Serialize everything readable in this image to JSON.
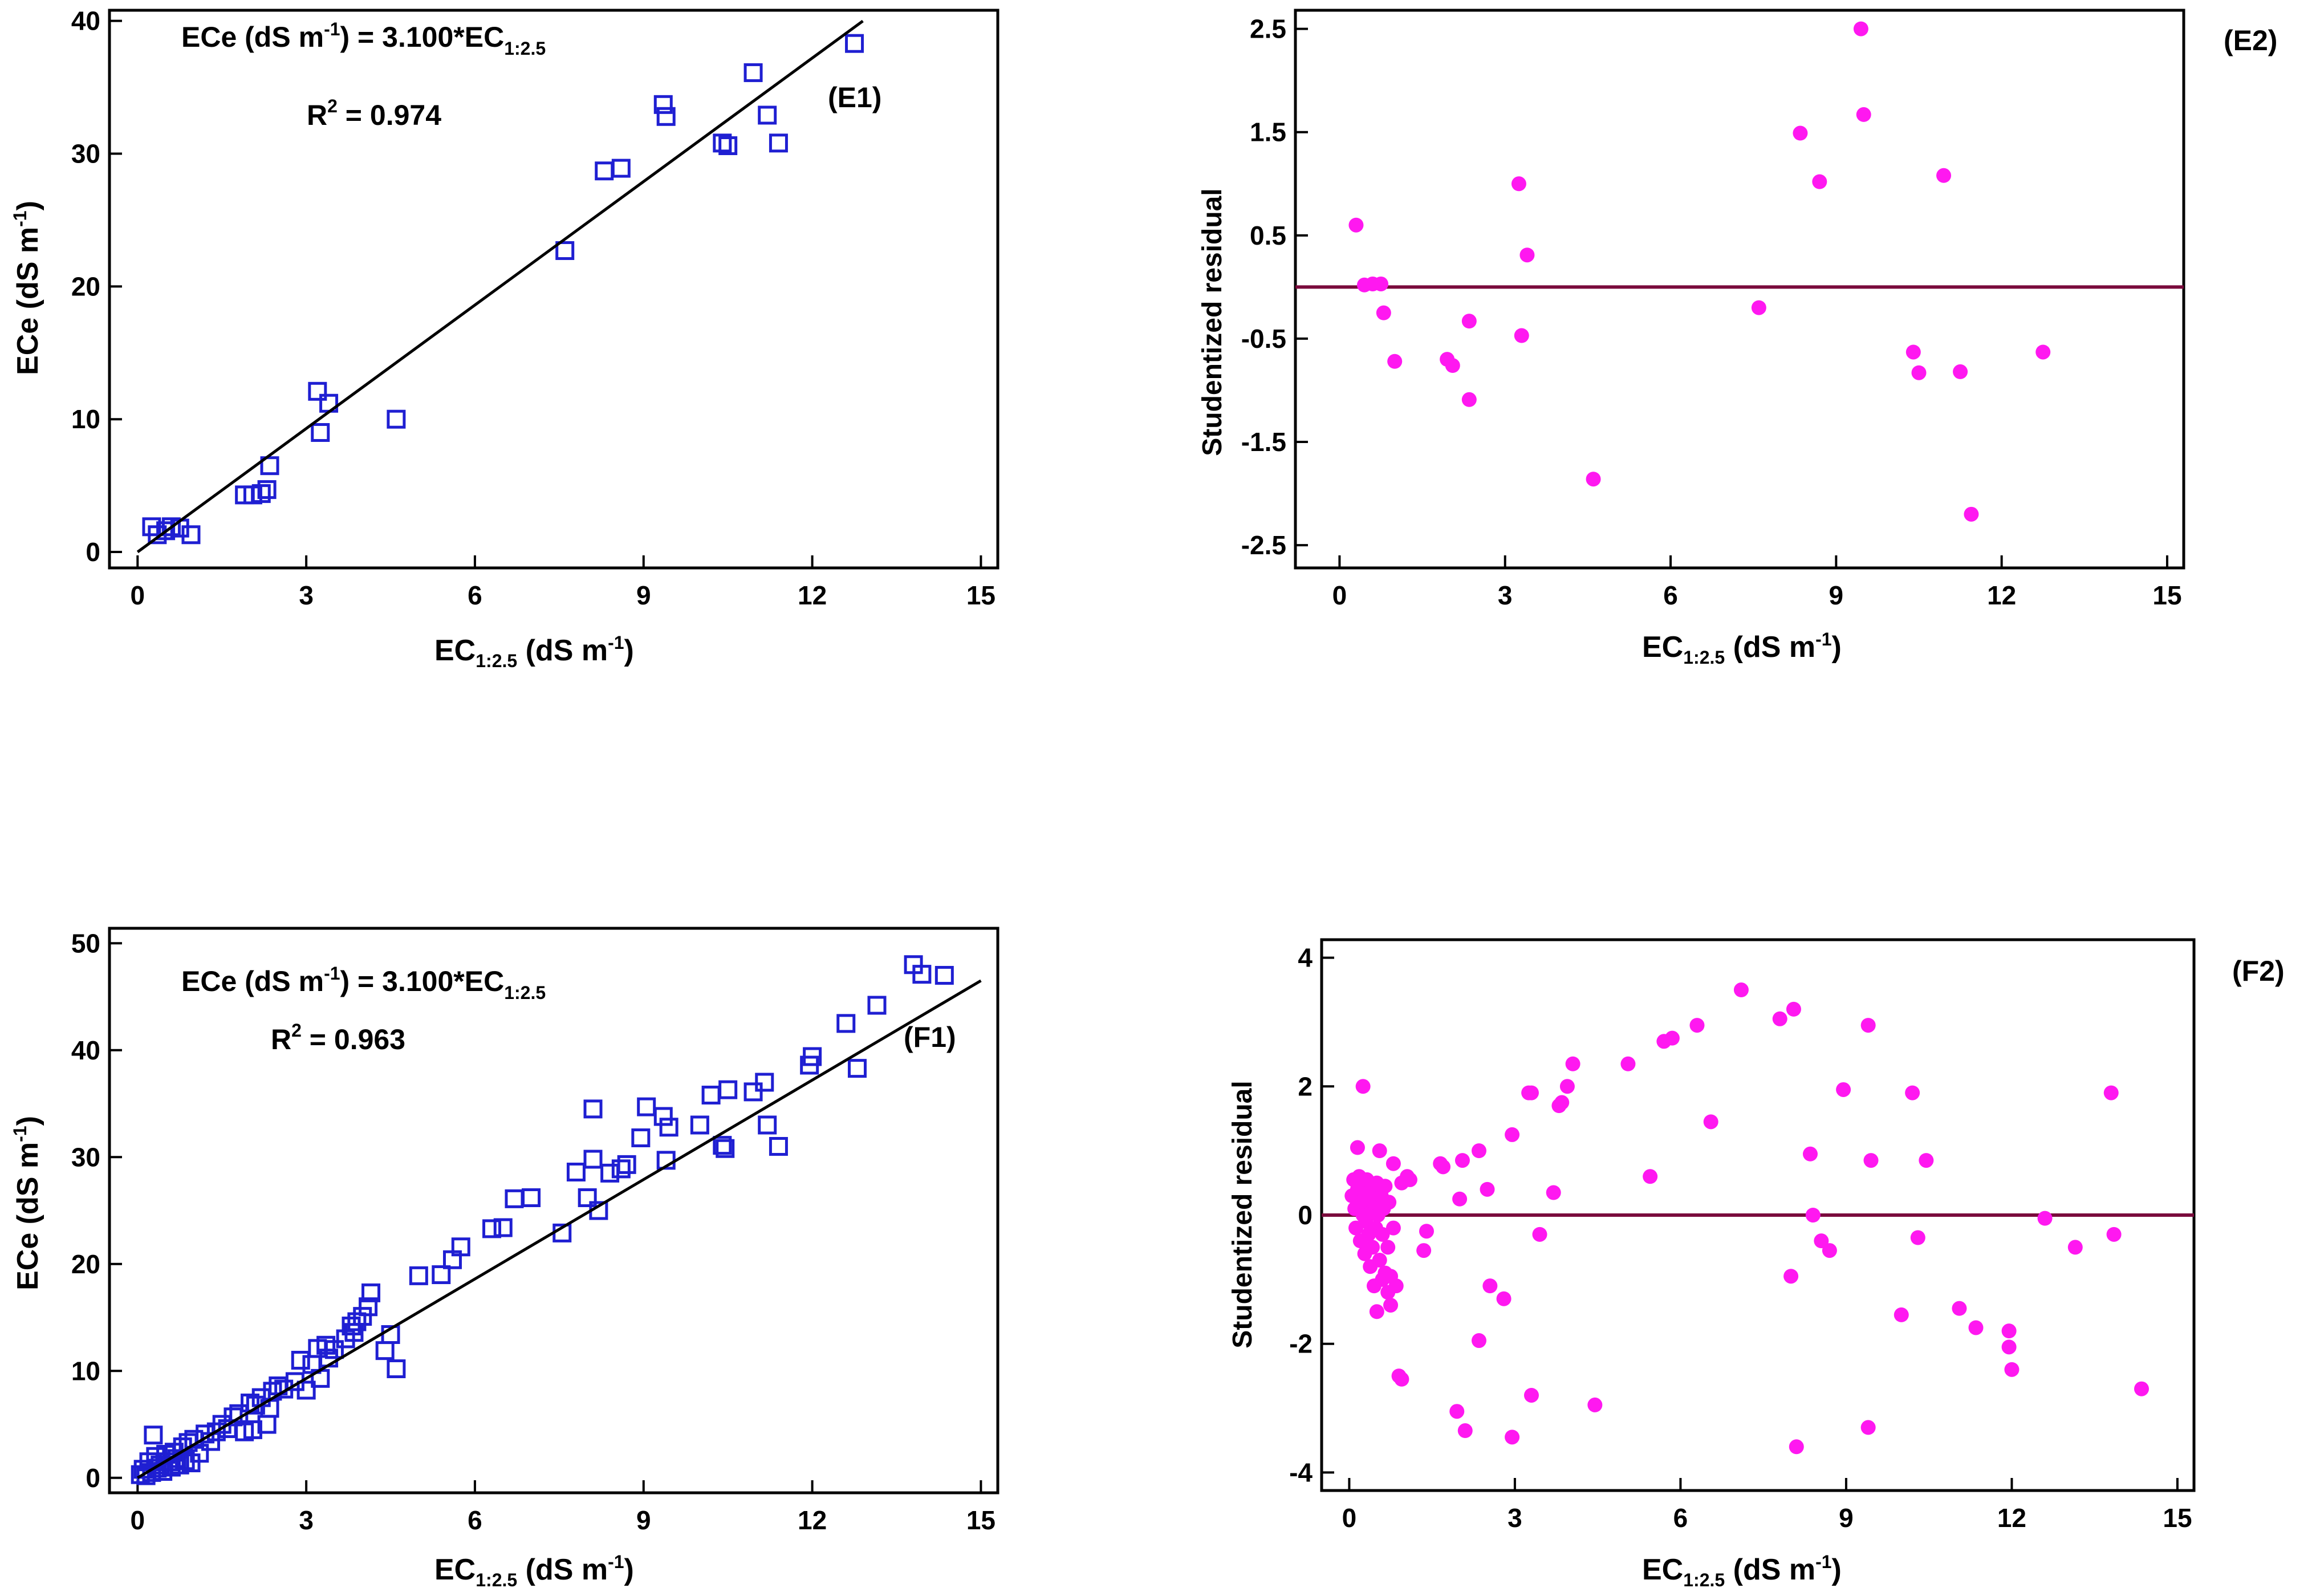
{
  "chart_data": [
    {
      "id": "E1",
      "type": "scatter",
      "panel_label": "(E1)",
      "equation_prefix": "ECe (dS m",
      "equation_sup": "-1",
      "equation_mid": ") = 3.100*EC",
      "equation_sub": "1:2.5",
      "r2_prefix": "R",
      "r2_sup": "2",
      "r2_suffix": " = 0.974",
      "xlabel_main": "EC",
      "xlabel_sub": "1:2.5",
      "xlabel_unit": " (dS m",
      "xlabel_sup": "-1",
      "xlabel_close": ")",
      "ylabel_main": "ECe (dS m",
      "ylabel_sup": "-1",
      "ylabel_close": ")",
      "xlim": [
        -0.5,
        15.3
      ],
      "ylim": [
        -1.2,
        40.8
      ],
      "xticks": [
        0,
        3,
        6,
        9,
        12,
        15
      ],
      "yticks": [
        0,
        10,
        20,
        30,
        40
      ],
      "xtick_labels": [
        "0",
        "3",
        "6",
        "9",
        "12",
        "15"
      ],
      "ytick_labels": [
        "0",
        "10",
        "20",
        "30",
        "40"
      ],
      "line": {
        "slope": 3.1,
        "x": [
          0,
          12.9
        ]
      },
      "marker": "square",
      "color": "#1f1fd2",
      "points": [
        [
          0.25,
          1.9
        ],
        [
          0.35,
          1.3
        ],
        [
          0.5,
          1.6
        ],
        [
          0.6,
          1.9
        ],
        [
          0.75,
          1.8
        ],
        [
          0.95,
          1.3
        ],
        [
          1.9,
          4.3
        ],
        [
          2.05,
          4.3
        ],
        [
          2.2,
          4.4
        ],
        [
          2.3,
          4.7
        ],
        [
          2.35,
          6.5
        ],
        [
          3.2,
          12.1
        ],
        [
          3.25,
          9.0
        ],
        [
          3.4,
          11.2
        ],
        [
          4.6,
          10.0
        ],
        [
          7.6,
          22.7
        ],
        [
          8.3,
          28.7
        ],
        [
          8.6,
          28.9
        ],
        [
          9.35,
          33.7
        ],
        [
          9.4,
          32.8
        ],
        [
          10.4,
          30.8
        ],
        [
          10.5,
          30.6
        ],
        [
          10.95,
          36.1
        ],
        [
          11.2,
          32.9
        ],
        [
          11.4,
          30.8
        ],
        [
          12.75,
          38.3
        ]
      ]
    },
    {
      "id": "E2",
      "type": "scatter",
      "panel_label": "(E2)",
      "xlabel_main": "EC",
      "xlabel_sub": "1:2.5",
      "xlabel_unit": " (dS m",
      "xlabel_sup": "-1",
      "xlabel_close": ")",
      "ylabel": "Studentized residual",
      "xlim": [
        -0.8,
        15.3
      ],
      "ylim": [
        -2.72,
        2.68
      ],
      "xticks": [
        0,
        3,
        6,
        9,
        12,
        15
      ],
      "yticks": [
        -2.5,
        -1.5,
        -0.5,
        0.5,
        1.5,
        2.5
      ],
      "xtick_labels": [
        "0",
        "3",
        "6",
        "9",
        "12",
        "15"
      ],
      "ytick_labels": [
        "-2.5",
        "-1.5",
        "-0.5",
        "0.5",
        "1.5",
        "2.5"
      ],
      "zero_line": 0,
      "zero_line_color": "#7a0b3c",
      "marker": "circle",
      "color": "#ff18f0",
      "points": [
        [
          0.3,
          0.6
        ],
        [
          0.45,
          0.02
        ],
        [
          0.6,
          0.03
        ],
        [
          0.75,
          0.03
        ],
        [
          0.8,
          -0.25
        ],
        [
          1.0,
          -0.72
        ],
        [
          1.95,
          -0.7
        ],
        [
          2.05,
          -0.76
        ],
        [
          2.35,
          -1.09
        ],
        [
          2.35,
          -0.33
        ],
        [
          3.25,
          1.0
        ],
        [
          3.3,
          -0.47
        ],
        [
          3.4,
          0.31
        ],
        [
          4.6,
          -1.86
        ],
        [
          7.6,
          -0.2
        ],
        [
          8.35,
          1.49
        ],
        [
          8.7,
          1.02
        ],
        [
          9.45,
          2.5
        ],
        [
          9.5,
          1.67
        ],
        [
          10.4,
          -0.63
        ],
        [
          10.5,
          -0.83
        ],
        [
          10.95,
          1.08
        ],
        [
          11.25,
          -0.82
        ],
        [
          11.45,
          -2.2
        ],
        [
          12.75,
          -0.63
        ]
      ]
    },
    {
      "id": "F1",
      "type": "scatter",
      "panel_label": "(F1)",
      "equation_prefix": "ECe (dS m",
      "equation_sup": "-1",
      "equation_mid": ") = 3.100*EC",
      "equation_sub": "1:2.5",
      "r2_prefix": "R",
      "r2_sup": "2",
      "r2_suffix": " = 0.963",
      "xlabel_main": "EC",
      "xlabel_sub": "1:2.5",
      "xlabel_unit": " (dS m",
      "xlabel_sup": "-1",
      "xlabel_close": ")",
      "ylabel_main": "ECe (dS m",
      "ylabel_sup": "-1",
      "ylabel_close": ")",
      "xlim": [
        -0.5,
        15.3
      ],
      "ylim": [
        -1.4,
        51.4
      ],
      "xticks": [
        0,
        3,
        6,
        9,
        12,
        15
      ],
      "yticks": [
        0,
        10,
        20,
        30,
        40,
        50
      ],
      "xtick_labels": [
        "0",
        "3",
        "6",
        "9",
        "12",
        "15"
      ],
      "ytick_labels": [
        "0",
        "10",
        "20",
        "30",
        "40",
        "50"
      ],
      "line": {
        "slope": 3.1,
        "x": [
          0,
          15
        ]
      },
      "marker": "square",
      "color": "#1f1fd2",
      "points": [
        [
          0.05,
          0.3
        ],
        [
          0.1,
          0.8
        ],
        [
          0.15,
          0.2
        ],
        [
          0.2,
          1.5
        ],
        [
          0.25,
          0.5
        ],
        [
          0.28,
          4.0
        ],
        [
          0.32,
          2.0
        ],
        [
          0.35,
          0.9
        ],
        [
          0.4,
          1.2
        ],
        [
          0.45,
          0.6
        ],
        [
          0.5,
          2.2
        ],
        [
          0.55,
          1.5
        ],
        [
          0.6,
          1.0
        ],
        [
          0.65,
          2.4
        ],
        [
          0.7,
          1.8
        ],
        [
          0.75,
          1.2
        ],
        [
          0.8,
          2.9
        ],
        [
          0.85,
          1.6
        ],
        [
          0.9,
          3.3
        ],
        [
          0.95,
          1.4
        ],
        [
          1.0,
          3.6
        ],
        [
          1.1,
          2.3
        ],
        [
          1.2,
          4.1
        ],
        [
          1.3,
          3.4
        ],
        [
          1.4,
          4.3
        ],
        [
          1.5,
          5.0
        ],
        [
          1.6,
          4.6
        ],
        [
          1.7,
          5.7
        ],
        [
          1.8,
          6.0
        ],
        [
          1.9,
          4.3
        ],
        [
          2.0,
          7.0
        ],
        [
          2.05,
          4.5
        ],
        [
          2.1,
          6.8
        ],
        [
          2.2,
          7.5
        ],
        [
          2.3,
          5.0
        ],
        [
          2.35,
          6.5
        ],
        [
          2.4,
          8.1
        ],
        [
          2.5,
          8.6
        ],
        [
          2.6,
          8.3
        ],
        [
          2.8,
          9.0
        ],
        [
          2.9,
          11.0
        ],
        [
          3.0,
          8.2
        ],
        [
          3.1,
          10.6
        ],
        [
          3.2,
          12.1
        ],
        [
          3.25,
          9.3
        ],
        [
          3.35,
          12.4
        ],
        [
          3.4,
          11.2
        ],
        [
          3.5,
          12.0
        ],
        [
          3.7,
          13.0
        ],
        [
          3.8,
          14.2
        ],
        [
          3.85,
          13.6
        ],
        [
          3.9,
          14.6
        ],
        [
          4.0,
          15.1
        ],
        [
          4.1,
          16.0
        ],
        [
          4.15,
          17.3
        ],
        [
          4.4,
          11.9
        ],
        [
          4.5,
          13.4
        ],
        [
          4.6,
          10.2
        ],
        [
          5.0,
          18.9
        ],
        [
          5.4,
          19.0
        ],
        [
          5.6,
          20.4
        ],
        [
          5.75,
          21.6
        ],
        [
          6.3,
          23.3
        ],
        [
          6.5,
          23.4
        ],
        [
          6.7,
          26.1
        ],
        [
          7.0,
          26.2
        ],
        [
          7.55,
          22.9
        ],
        [
          7.8,
          28.6
        ],
        [
          8.0,
          26.2
        ],
        [
          8.1,
          29.8
        ],
        [
          8.1,
          34.5
        ],
        [
          8.2,
          25.0
        ],
        [
          8.4,
          28.5
        ],
        [
          8.6,
          28.9
        ],
        [
          8.7,
          29.3
        ],
        [
          8.95,
          31.8
        ],
        [
          9.05,
          34.7
        ],
        [
          9.35,
          33.8
        ],
        [
          9.4,
          29.7
        ],
        [
          9.45,
          32.8
        ],
        [
          10.0,
          33.0
        ],
        [
          10.2,
          35.8
        ],
        [
          10.4,
          31.1
        ],
        [
          10.45,
          30.8
        ],
        [
          10.5,
          36.3
        ],
        [
          10.95,
          36.1
        ],
        [
          11.15,
          37.0
        ],
        [
          11.2,
          33.0
        ],
        [
          11.4,
          31.0
        ],
        [
          11.95,
          38.6
        ],
        [
          12.0,
          39.4
        ],
        [
          12.6,
          42.5
        ],
        [
          12.8,
          38.3
        ],
        [
          13.15,
          44.2
        ],
        [
          13.8,
          48.0
        ],
        [
          13.95,
          47.1
        ],
        [
          14.35,
          47.0
        ]
      ]
    },
    {
      "id": "F2",
      "type": "scatter",
      "panel_label": "(F2)",
      "xlabel_main": "EC",
      "xlabel_sub": "1:2.5",
      "xlabel_unit": " (dS m",
      "xlabel_sup": "-1",
      "xlabel_close": ")",
      "ylabel": "Studentized residual",
      "xlim": [
        -0.5,
        15.3
      ],
      "ylim": [
        -4.28,
        4.28
      ],
      "xticks": [
        0,
        3,
        6,
        9,
        12,
        15
      ],
      "yticks": [
        -4,
        -2,
        0,
        2,
        4
      ],
      "xtick_labels": [
        "0",
        "3",
        "6",
        "9",
        "12",
        "15"
      ],
      "ytick_labels": [
        "-4",
        "-2",
        "0",
        "2",
        "4"
      ],
      "zero_line": 0,
      "zero_line_color": "#7a0b3c",
      "marker": "circle",
      "color": "#ff18f0",
      "points": [
        [
          0.05,
          0.3
        ],
        [
          0.08,
          0.55
        ],
        [
          0.1,
          0.1
        ],
        [
          0.12,
          -0.2
        ],
        [
          0.15,
          1.05
        ],
        [
          0.15,
          0.4
        ],
        [
          0.18,
          0.6
        ],
        [
          0.2,
          0.2
        ],
        [
          0.2,
          -0.4
        ],
        [
          0.22,
          0.45
        ],
        [
          0.25,
          0.0
        ],
        [
          0.25,
          2.0
        ],
        [
          0.28,
          -0.6
        ],
        [
          0.3,
          0.3
        ],
        [
          0.3,
          -0.1
        ],
        [
          0.32,
          0.55
        ],
        [
          0.35,
          0.15
        ],
        [
          0.35,
          -0.3
        ],
        [
          0.38,
          -0.8
        ],
        [
          0.4,
          0.4
        ],
        [
          0.4,
          0.05
        ],
        [
          0.42,
          -0.5
        ],
        [
          0.45,
          0.2
        ],
        [
          0.45,
          -1.1
        ],
        [
          0.48,
          -0.2
        ],
        [
          0.5,
          0.5
        ],
        [
          0.5,
          -1.5
        ],
        [
          0.52,
          0.0
        ],
        [
          0.55,
          -0.7
        ],
        [
          0.55,
          1.0
        ],
        [
          0.58,
          0.3
        ],
        [
          0.6,
          -0.3
        ],
        [
          0.6,
          -1.0
        ],
        [
          0.62,
          0.1
        ],
        [
          0.65,
          -0.9
        ],
        [
          0.65,
          0.45
        ],
        [
          0.7,
          -0.5
        ],
        [
          0.7,
          -1.2
        ],
        [
          0.72,
          0.2
        ],
        [
          0.75,
          -0.95
        ],
        [
          0.75,
          -1.4
        ],
        [
          0.8,
          -0.2
        ],
        [
          0.8,
          0.8
        ],
        [
          0.85,
          -1.1
        ],
        [
          0.9,
          -2.5
        ],
        [
          0.95,
          0.5
        ],
        [
          0.95,
          -2.55
        ],
        [
          1.05,
          0.6
        ],
        [
          1.1,
          0.55
        ],
        [
          1.35,
          -0.55
        ],
        [
          1.4,
          -0.25
        ],
        [
          1.65,
          0.8
        ],
        [
          1.7,
          0.75
        ],
        [
          1.95,
          -3.05
        ],
        [
          2.0,
          0.25
        ],
        [
          2.05,
          0.85
        ],
        [
          2.1,
          -3.35
        ],
        [
          2.35,
          1.0
        ],
        [
          2.35,
          -1.95
        ],
        [
          2.5,
          0.4
        ],
        [
          2.55,
          -1.1
        ],
        [
          2.8,
          -1.3
        ],
        [
          2.95,
          1.25
        ],
        [
          2.95,
          -3.45
        ],
        [
          3.25,
          1.9
        ],
        [
          3.3,
          1.9
        ],
        [
          3.3,
          -2.8
        ],
        [
          3.45,
          -0.3
        ],
        [
          3.7,
          0.35
        ],
        [
          3.8,
          1.7
        ],
        [
          3.85,
          1.75
        ],
        [
          3.95,
          2.0
        ],
        [
          4.05,
          2.35
        ],
        [
          4.45,
          -2.95
        ],
        [
          5.05,
          2.35
        ],
        [
          5.45,
          0.6
        ],
        [
          5.7,
          2.7
        ],
        [
          5.85,
          2.75
        ],
        [
          6.3,
          2.95
        ],
        [
          6.55,
          1.45
        ],
        [
          7.1,
          3.5
        ],
        [
          7.8,
          3.05
        ],
        [
          8.0,
          -0.95
        ],
        [
          8.05,
          3.2
        ],
        [
          8.1,
          -3.6
        ],
        [
          8.35,
          0.95
        ],
        [
          8.4,
          0.0
        ],
        [
          8.55,
          -0.4
        ],
        [
          8.7,
          -0.55
        ],
        [
          8.95,
          1.95
        ],
        [
          9.4,
          -3.3
        ],
        [
          9.4,
          2.95
        ],
        [
          9.45,
          0.85
        ],
        [
          10.0,
          -1.55
        ],
        [
          10.2,
          1.9
        ],
        [
          10.3,
          -0.35
        ],
        [
          10.45,
          0.85
        ],
        [
          11.05,
          -1.45
        ],
        [
          11.35,
          -1.75
        ],
        [
          11.95,
          -1.8
        ],
        [
          11.95,
          -2.05
        ],
        [
          12.0,
          -2.4
        ],
        [
          12.6,
          -0.05
        ],
        [
          13.15,
          -0.5
        ],
        [
          13.8,
          1.9
        ],
        [
          13.85,
          -0.3
        ],
        [
          14.35,
          -2.7
        ]
      ]
    }
  ]
}
